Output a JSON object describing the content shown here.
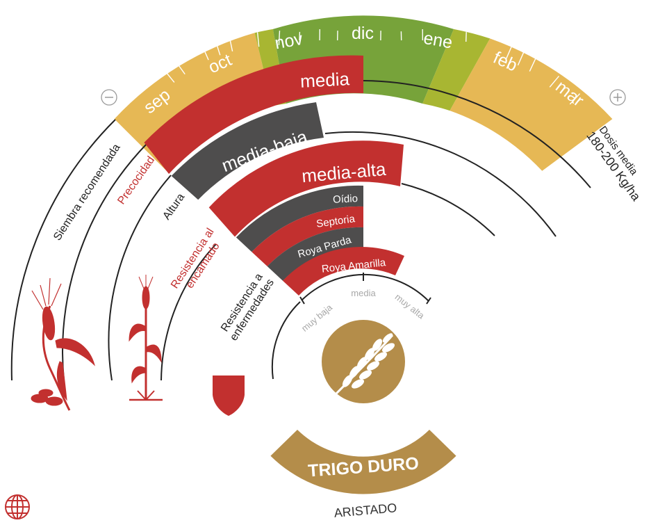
{
  "months": [
    "sep",
    "oct",
    "nov",
    "dic",
    "ene",
    "feb",
    "mar"
  ],
  "scale": {
    "min_symbol": "−",
    "max_symbol": "+"
  },
  "dose": {
    "line1": "Dosis media",
    "line2": "180-200 Kg/ha"
  },
  "arc_labels": {
    "siembra": "Siembra recomendada",
    "precocidad": "Precocidad",
    "altura": "Altura",
    "resistencia_encamado_1": "Resistencia al",
    "resistencia_encamado_2": "encamado",
    "resistencia_enf_1": "Resistencia a",
    "resistencia_enf_2": "enfermedades"
  },
  "ratings": {
    "precocidad": "media",
    "altura": "media-baja",
    "resistencia_encamado": "media-alta"
  },
  "diseases": [
    {
      "name": "Oídio",
      "level": "media"
    },
    {
      "name": "Septoria",
      "level": "media"
    },
    {
      "name": "Roya Parda",
      "level": "media"
    },
    {
      "name": "Roya Amarilla",
      "level": "media-alta"
    }
  ],
  "disease_scale": [
    "muy baja",
    "media",
    "muy alta"
  ],
  "product": {
    "name": "TRIGO DURO",
    "type": "ARISTADO"
  },
  "colors": {
    "red": "#c2302f",
    "gray": "#4e4d4d",
    "yellow": "#e6b855",
    "green": "#77a33a",
    "lime": "#a8b632",
    "gold": "#b48d4a"
  }
}
